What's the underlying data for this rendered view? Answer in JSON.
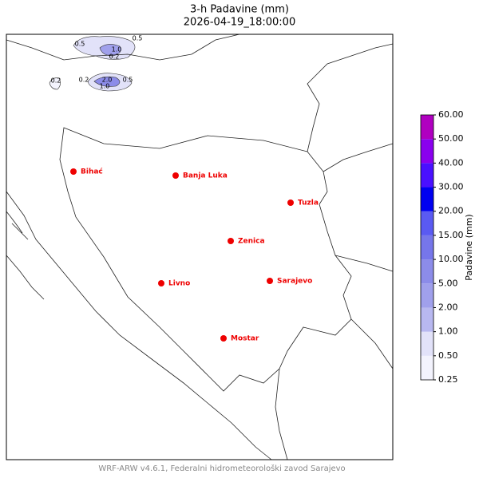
{
  "title": "3-h Padavine (mm)",
  "subtitle": "2026-04-19_18:00:00",
  "cities": [
    "Bihać",
    "Banja Luka",
    "Tuzla",
    "Zenica",
    "Livno",
    "Sarajevo",
    "Mostar"
  ],
  "contour_labels": [
    "0.5",
    "0.5",
    "1.0",
    "0.2",
    "0.2",
    "0.2",
    "2.0",
    "1.0",
    "0.5"
  ],
  "colorbar": {
    "label": "Padavine (mm)",
    "ticks": [
      "0.25",
      "0.50",
      "1.00",
      "2.00",
      "5.00",
      "10.00",
      "15.00",
      "20.00",
      "30.00",
      "40.00",
      "50.00",
      "60.00"
    ],
    "colors": [
      "#f3f3fd",
      "#e2e2f9",
      "#b8b8f0",
      "#a0a0ec",
      "#8c8ce9",
      "#7676ea",
      "#5a5af2",
      "#0000f0",
      "#4a10ff",
      "#8a00ee",
      "#b000c0"
    ]
  },
  "footer": "WRF-ARW v4.6.1, Federalni hidrometeorološki zavod Sarajevo"
}
